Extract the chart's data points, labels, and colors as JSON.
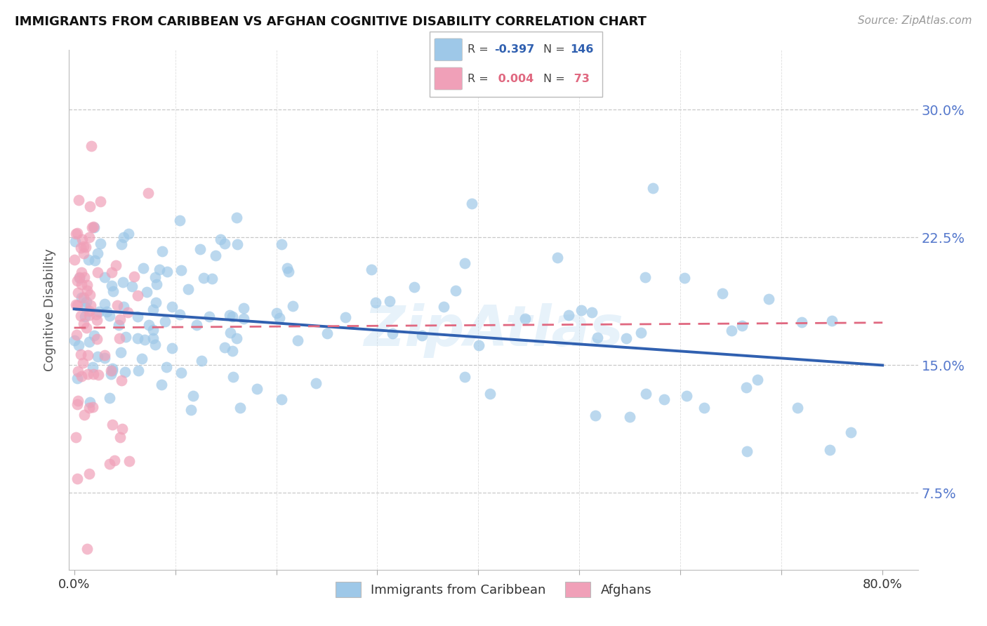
{
  "title": "IMMIGRANTS FROM CARIBBEAN VS AFGHAN COGNITIVE DISABILITY CORRELATION CHART",
  "source": "Source: ZipAtlas.com",
  "ylabel": "Cognitive Disability",
  "ytick_labels": [
    "30.0%",
    "22.5%",
    "15.0%",
    "7.5%"
  ],
  "ytick_values": [
    0.3,
    0.225,
    0.15,
    0.075
  ],
  "ymin": 0.03,
  "ymax": 0.335,
  "xmin": -0.005,
  "xmax": 0.835,
  "caribbean_color": "#9ec8e8",
  "afghan_color": "#f0a0b8",
  "trendline_caribbean_color": "#3060b0",
  "trendline_afghan_color": "#e06880",
  "background_color": "#ffffff",
  "grid_color": "#c8c8c8",
  "axis_label_color": "#5578cc",
  "watermark": "ZipAtlas",
  "caribbean_R": "-0.397",
  "caribbean_N": "146",
  "afghan_R": "0.004",
  "afghan_N": "73",
  "car_trend_x0": 0.0,
  "car_trend_x1": 0.8,
  "car_trend_y0": 0.183,
  "car_trend_y1": 0.15,
  "afg_trend_x0": 0.0,
  "afg_trend_x1": 0.8,
  "afg_trend_y0": 0.172,
  "afg_trend_y1": 0.175
}
